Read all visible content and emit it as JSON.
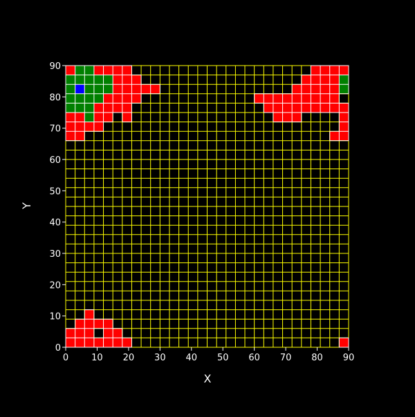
{
  "chart_data": {
    "type": "heatmap",
    "title": "",
    "xlabel": "X",
    "ylabel": "Y",
    "xlim": [
      0,
      90
    ],
    "ylim": [
      0,
      90
    ],
    "x_ticks": [
      "0",
      "10",
      "20",
      "30",
      "40",
      "50",
      "60",
      "70",
      "80",
      "90"
    ],
    "y_ticks": [
      "0",
      "10",
      "20",
      "30",
      "40",
      "50",
      "60",
      "70",
      "80",
      "90"
    ],
    "cell_size": 3,
    "grid": true,
    "colors": {
      "background": "#000000",
      "grid_empty": "#ffff00",
      "grid_filled": "#ffffff",
      "axis_text": "#ffffff",
      "red": "#ff0000",
      "green": "#008000",
      "blue": "#0000ff"
    },
    "cells": {
      "green": [
        [
          3,
          87
        ],
        [
          6,
          87
        ],
        [
          0,
          84
        ],
        [
          3,
          84
        ],
        [
          6,
          84
        ],
        [
          9,
          84
        ],
        [
          12,
          84
        ],
        [
          0,
          81
        ],
        [
          6,
          81
        ],
        [
          9,
          81
        ],
        [
          12,
          81
        ],
        [
          0,
          78
        ],
        [
          3,
          78
        ],
        [
          6,
          78
        ],
        [
          9,
          78
        ],
        [
          0,
          75
        ],
        [
          3,
          75
        ],
        [
          6,
          75
        ],
        [
          6,
          72
        ],
        [
          87,
          84
        ],
        [
          87,
          81
        ]
      ],
      "blue": [
        [
          3,
          81
        ]
      ],
      "red": [
        [
          0,
          87
        ],
        [
          9,
          87
        ],
        [
          12,
          87
        ],
        [
          15,
          87
        ],
        [
          18,
          87
        ],
        [
          78,
          87
        ],
        [
          81,
          87
        ],
        [
          84,
          87
        ],
        [
          87,
          87
        ],
        [
          15,
          84
        ],
        [
          18,
          84
        ],
        [
          21,
          84
        ],
        [
          75,
          84
        ],
        [
          78,
          84
        ],
        [
          81,
          84
        ],
        [
          84,
          84
        ],
        [
          87,
          84
        ],
        [
          15,
          81
        ],
        [
          18,
          81
        ],
        [
          21,
          81
        ],
        [
          24,
          81
        ],
        [
          27,
          81
        ],
        [
          72,
          81
        ],
        [
          75,
          81
        ],
        [
          78,
          81
        ],
        [
          81,
          81
        ],
        [
          84,
          81
        ],
        [
          12,
          78
        ],
        [
          15,
          78
        ],
        [
          18,
          78
        ],
        [
          21,
          78
        ],
        [
          60,
          78
        ],
        [
          63,
          78
        ],
        [
          66,
          78
        ],
        [
          69,
          78
        ],
        [
          72,
          78
        ],
        [
          75,
          78
        ],
        [
          78,
          78
        ],
        [
          81,
          78
        ],
        [
          84,
          78
        ],
        [
          9,
          75
        ],
        [
          12,
          75
        ],
        [
          15,
          75
        ],
        [
          18,
          75
        ],
        [
          63,
          75
        ],
        [
          66,
          75
        ],
        [
          69,
          75
        ],
        [
          72,
          75
        ],
        [
          75,
          75
        ],
        [
          78,
          75
        ],
        [
          81,
          75
        ],
        [
          84,
          75
        ],
        [
          87,
          75
        ],
        [
          0,
          72
        ],
        [
          3,
          72
        ],
        [
          9,
          72
        ],
        [
          12,
          72
        ],
        [
          18,
          72
        ],
        [
          66,
          72
        ],
        [
          69,
          72
        ],
        [
          72,
          72
        ],
        [
          87,
          72
        ],
        [
          0,
          69
        ],
        [
          3,
          69
        ],
        [
          6,
          69
        ],
        [
          9,
          69
        ],
        [
          87,
          69
        ],
        [
          0,
          66
        ],
        [
          3,
          66
        ],
        [
          84,
          66
        ],
        [
          87,
          66
        ],
        [
          6,
          9
        ],
        [
          3,
          6
        ],
        [
          6,
          6
        ],
        [
          9,
          6
        ],
        [
          12,
          6
        ],
        [
          0,
          3
        ],
        [
          3,
          3
        ],
        [
          6,
          3
        ],
        [
          12,
          3
        ],
        [
          15,
          3
        ],
        [
          0,
          0
        ],
        [
          3,
          0
        ],
        [
          6,
          0
        ],
        [
          9,
          0
        ],
        [
          12,
          0
        ],
        [
          15,
          0
        ],
        [
          18,
          0
        ],
        [
          87,
          0
        ]
      ]
    }
  }
}
